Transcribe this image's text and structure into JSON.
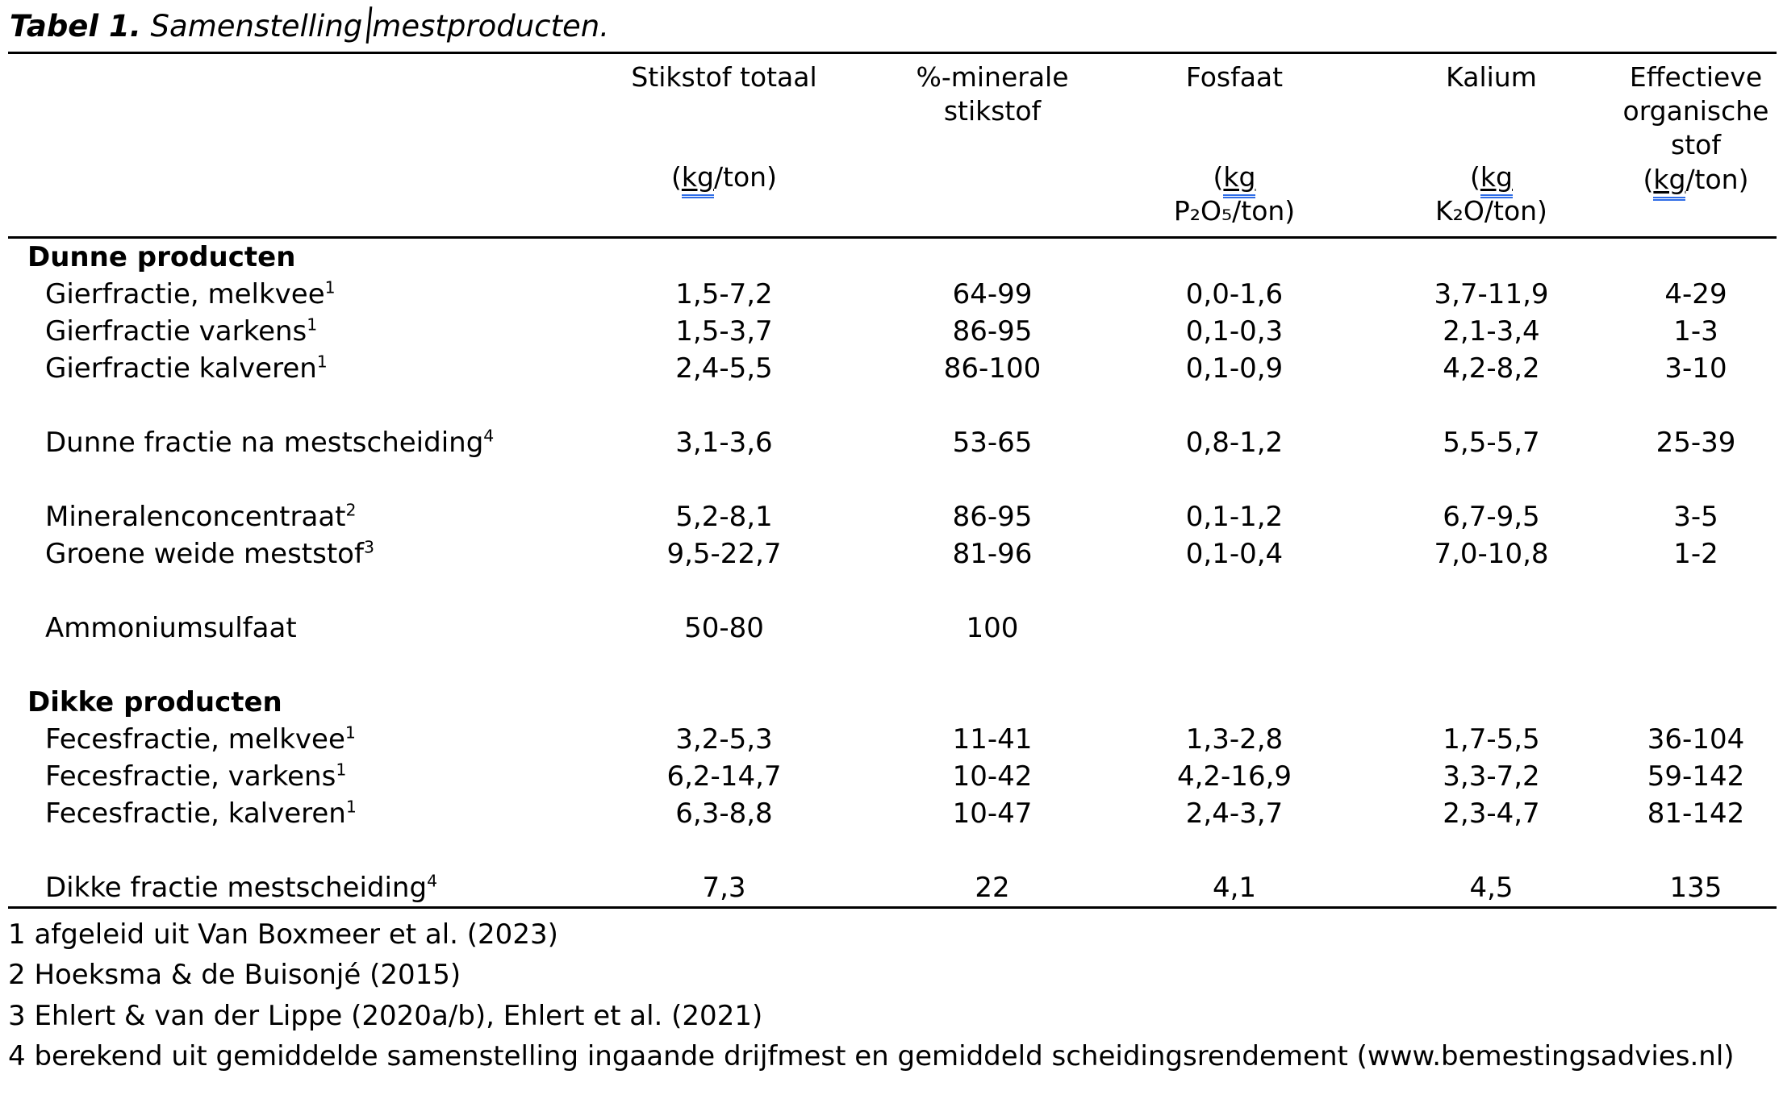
{
  "title": {
    "label": "Tabel 1.",
    "caption_before_cursor": "Samenstelling",
    "caption_after_cursor": "mestproducten."
  },
  "colors": {
    "text": "#000000",
    "rule": "#000000",
    "spellcheck_underline": "#2e6ce6"
  },
  "table": {
    "columns": [
      {
        "label": "Stikstof totaal",
        "unit_pre": "(",
        "unit_kg": "kg",
        "unit_post": "/ton)",
        "unit_line2": ""
      },
      {
        "label": "%-minerale\nstikstof",
        "unit_pre": "",
        "unit_kg": "",
        "unit_post": "",
        "unit_line2": ""
      },
      {
        "label": "Fosfaat",
        "unit_pre": "(",
        "unit_kg": "kg",
        "unit_post": "",
        "unit_line2": "P₂O₅/ton)"
      },
      {
        "label": "Kalium",
        "unit_pre": "(",
        "unit_kg": "kg",
        "unit_post": "",
        "unit_line2": "K₂O/ton)"
      },
      {
        "label": "Effectieve\norganische\nstof",
        "unit_pre": "(",
        "unit_kg": "kg",
        "unit_post": "/ton)",
        "unit_line2": ""
      }
    ],
    "rows": [
      {
        "type": "group",
        "name": "Dunne producten",
        "sup": "",
        "values": [
          "",
          "",
          "",
          "",
          ""
        ]
      },
      {
        "type": "item",
        "name": "Gierfractie, melkvee",
        "sup": "1",
        "values": [
          "1,5-7,2",
          "64-99",
          "0,0-1,6",
          "3,7-11,9",
          "4-29"
        ]
      },
      {
        "type": "item",
        "name": "Gierfractie varkens",
        "sup": "1",
        "values": [
          "1,5-3,7",
          "86-95",
          "0,1-0,3",
          "2,1-3,4",
          "1-3"
        ]
      },
      {
        "type": "item",
        "name": "Gierfractie kalveren",
        "sup": "1",
        "values": [
          "2,4-5,5",
          "86-100",
          "0,1-0,9",
          "4,2-8,2",
          "3-10"
        ]
      },
      {
        "type": "spacer",
        "name": "",
        "sup": "",
        "values": [
          "",
          "",
          "",
          "",
          ""
        ]
      },
      {
        "type": "item",
        "name": "Dunne fractie na mestscheiding",
        "sup": "4",
        "values": [
          "3,1-3,6",
          "53-65",
          "0,8-1,2",
          "5,5-5,7",
          "25-39"
        ]
      },
      {
        "type": "spacer",
        "name": "",
        "sup": "",
        "values": [
          "",
          "",
          "",
          "",
          ""
        ]
      },
      {
        "type": "item",
        "name": "Mineralenconcentraat",
        "sup": "2",
        "values": [
          "5,2-8,1",
          "86-95",
          "0,1-1,2",
          "6,7-9,5",
          "3-5"
        ]
      },
      {
        "type": "item",
        "name": "Groene weide meststof",
        "sup": "3",
        "values": [
          "9,5-22,7",
          "81-96",
          "0,1-0,4",
          "7,0-10,8",
          "1-2"
        ]
      },
      {
        "type": "spacer",
        "name": "",
        "sup": "",
        "values": [
          "",
          "",
          "",
          "",
          ""
        ]
      },
      {
        "type": "item",
        "name": "Ammoniumsulfaat",
        "sup": "",
        "values": [
          "50-80",
          "100",
          "",
          "",
          ""
        ]
      },
      {
        "type": "spacer",
        "name": "",
        "sup": "",
        "values": [
          "",
          "",
          "",
          "",
          ""
        ]
      },
      {
        "type": "group",
        "name": "Dikke producten",
        "sup": "",
        "values": [
          "",
          "",
          "",
          "",
          ""
        ]
      },
      {
        "type": "item",
        "name": "Fecesfractie, melkvee",
        "sup": "1",
        "values": [
          "3,2-5,3",
          "11-41",
          "1,3-2,8",
          "1,7-5,5",
          "36-104"
        ]
      },
      {
        "type": "item",
        "name": "Fecesfractie, varkens",
        "sup": "1",
        "values": [
          "6,2-14,7",
          "10-42",
          "4,2-16,9",
          "3,3-7,2",
          "59-142"
        ]
      },
      {
        "type": "item",
        "name": "Fecesfractie, kalveren",
        "sup": "1",
        "values": [
          "6,3-8,8",
          "10-47",
          "2,4-3,7",
          "2,3-4,7",
          "81-142"
        ]
      },
      {
        "type": "spacer",
        "name": "",
        "sup": "",
        "values": [
          "",
          "",
          "",
          "",
          ""
        ]
      },
      {
        "type": "item",
        "name": "Dikke fractie mestscheiding",
        "sup": "4",
        "values": [
          "7,3",
          "22",
          "4,1",
          "4,5",
          "135"
        ]
      }
    ],
    "footnotes": [
      "1 afgeleid uit Van Boxmeer et al. (2023)",
      "2 Hoeksma & de Buisonjé (2015)",
      "3 Ehlert & van der Lippe (2020a/b), Ehlert et al. (2021)",
      "4 berekend uit gemiddelde samenstelling ingaande drijfmest en gemiddeld scheidingsrendement (www.bemestingsadvies.nl)"
    ]
  }
}
